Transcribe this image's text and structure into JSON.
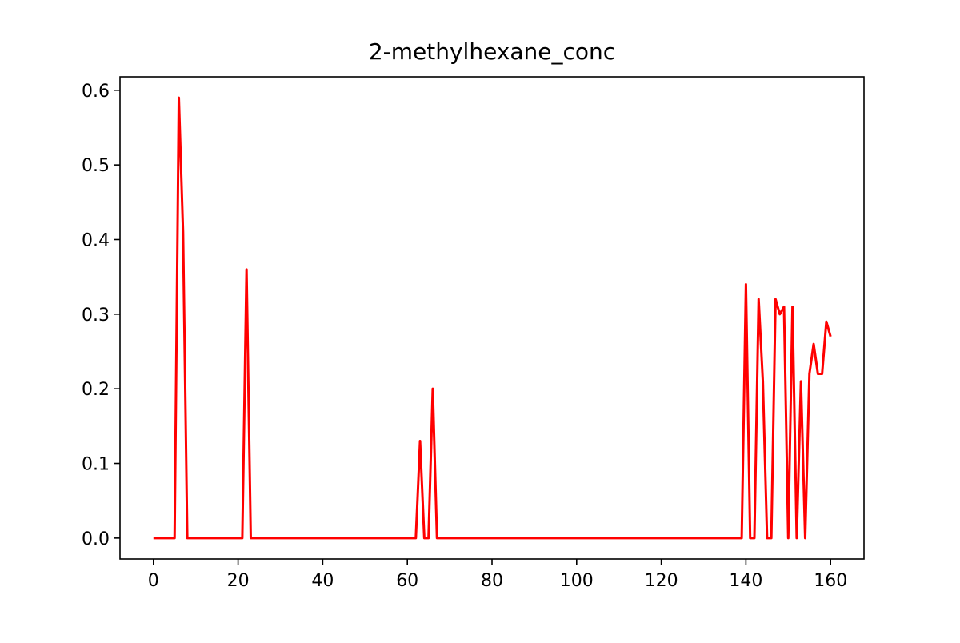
{
  "chart_data": {
    "type": "line",
    "title": "2-methylhexane_conc",
    "xlabel": "",
    "ylabel": "",
    "xlim": [
      -7.9,
      167.9
    ],
    "ylim": [
      -0.028,
      0.618
    ],
    "xticks": [
      0,
      20,
      40,
      60,
      80,
      100,
      120,
      140,
      160
    ],
    "xtick_labels": [
      "0",
      "20",
      "40",
      "60",
      "80",
      "100",
      "120",
      "140",
      "160"
    ],
    "yticks": [
      0.0,
      0.1,
      0.2,
      0.3,
      0.4,
      0.5,
      0.6
    ],
    "ytick_labels": [
      "0.0",
      "0.1",
      "0.2",
      "0.3",
      "0.4",
      "0.5",
      "0.6"
    ],
    "grid": false,
    "legend": "none",
    "series": [
      {
        "color": "#ff0000",
        "x": [
          0,
          1,
          2,
          3,
          4,
          5,
          6,
          7,
          8,
          9,
          20,
          21,
          22,
          23,
          24,
          61,
          62,
          63,
          64,
          65,
          66,
          67,
          68,
          138,
          139,
          140,
          141,
          142,
          143,
          144,
          145,
          146,
          147,
          148,
          149,
          150,
          151,
          152,
          153,
          154,
          155,
          156,
          157,
          158,
          159,
          160
        ],
        "y": [
          0,
          0,
          0,
          0,
          0,
          0,
          0.59,
          0.41,
          0,
          0,
          0,
          0,
          0.36,
          0,
          0,
          0,
          0,
          0.13,
          0,
          0,
          0.2,
          0,
          0,
          0,
          0,
          0.34,
          0,
          0,
          0.32,
          0.21,
          0,
          0,
          0.32,
          0.3,
          0.31,
          0,
          0.31,
          0,
          0.21,
          0,
          0.22,
          0.26,
          0.22,
          0.22,
          0.29,
          0.27
        ]
      }
    ]
  }
}
